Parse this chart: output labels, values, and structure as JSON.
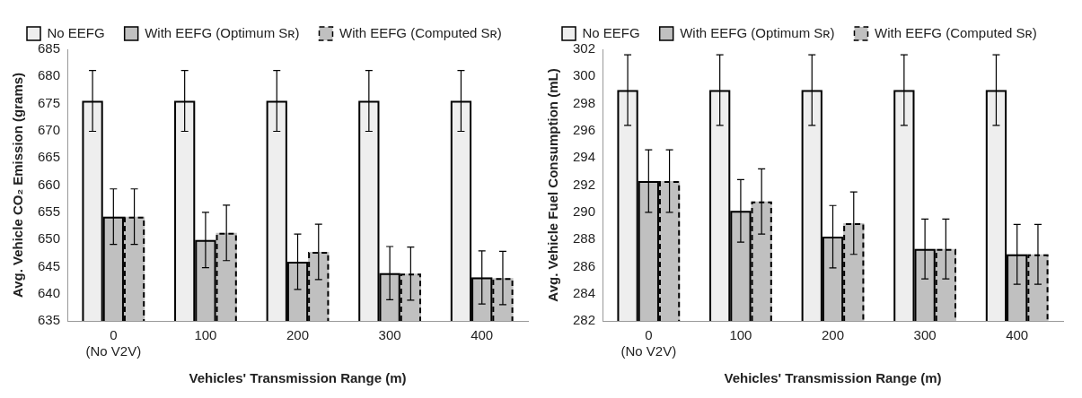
{
  "chart_data": [
    {
      "type": "bar",
      "categories": [
        "0\n(No V2V)",
        "100",
        "200",
        "300",
        "400"
      ],
      "xlabel": "Vehicles' Transmission Range (m)",
      "ylabel": "Avg. Vehicle CO₂ Emission (grams)",
      "ylim": [
        635,
        685
      ],
      "yticks": [
        635,
        640,
        645,
        650,
        655,
        660,
        665,
        670,
        675,
        680,
        685
      ],
      "grid": false,
      "legend": "top",
      "series": [
        {
          "name": "No EEFG",
          "color": "#eeeeee",
          "line_style": "solid",
          "values": [
            675.5,
            675.5,
            675.5,
            675.5,
            675.5
          ],
          "errors": [
            5.6,
            5.6,
            5.6,
            5.6,
            5.6
          ]
        },
        {
          "name": "With EEFG (Optimum Sʀ)",
          "color": "#c0c0c0",
          "line_style": "solid",
          "values": [
            654.2,
            649.9,
            645.9,
            643.8,
            643.0
          ],
          "errors": [
            5.1,
            5.1,
            5.1,
            4.9,
            4.9
          ]
        },
        {
          "name": "With EEFG (Computed Sʀ)",
          "color": "#c0c0c0",
          "line_style": "dashed",
          "values": [
            654.2,
            651.2,
            647.7,
            643.7,
            642.9
          ],
          "errors": [
            5.1,
            5.1,
            5.1,
            4.9,
            4.9
          ]
        }
      ]
    },
    {
      "type": "bar",
      "categories": [
        "0\n(No V2V)",
        "100",
        "200",
        "300",
        "400"
      ],
      "xlabel": "Vehicles' Transmission Range (m)",
      "ylabel": "Avg. Vehicle Fuel Consumption (mL)",
      "ylim": [
        282,
        302
      ],
      "yticks": [
        282,
        284,
        286,
        288,
        290,
        292,
        294,
        296,
        298,
        300,
        302
      ],
      "grid": false,
      "legend": "top",
      "series": [
        {
          "name": "No EEFG",
          "color": "#eeeeee",
          "line_style": "solid",
          "values": [
            299.0,
            299.0,
            299.0,
            299.0,
            299.0
          ],
          "errors": [
            2.6,
            2.6,
            2.6,
            2.6,
            2.6
          ]
        },
        {
          "name": "With EEFG (Optimum Sʀ)",
          "color": "#c0c0c0",
          "line_style": "solid",
          "values": [
            292.3,
            290.1,
            288.2,
            287.3,
            286.9
          ],
          "errors": [
            2.3,
            2.3,
            2.3,
            2.2,
            2.2
          ]
        },
        {
          "name": "With EEFG (Computed Sʀ)",
          "color": "#c0c0c0",
          "line_style": "dashed",
          "values": [
            292.3,
            290.8,
            289.2,
            287.3,
            286.9
          ],
          "errors": [
            2.3,
            2.4,
            2.3,
            2.2,
            2.2
          ]
        }
      ]
    }
  ]
}
